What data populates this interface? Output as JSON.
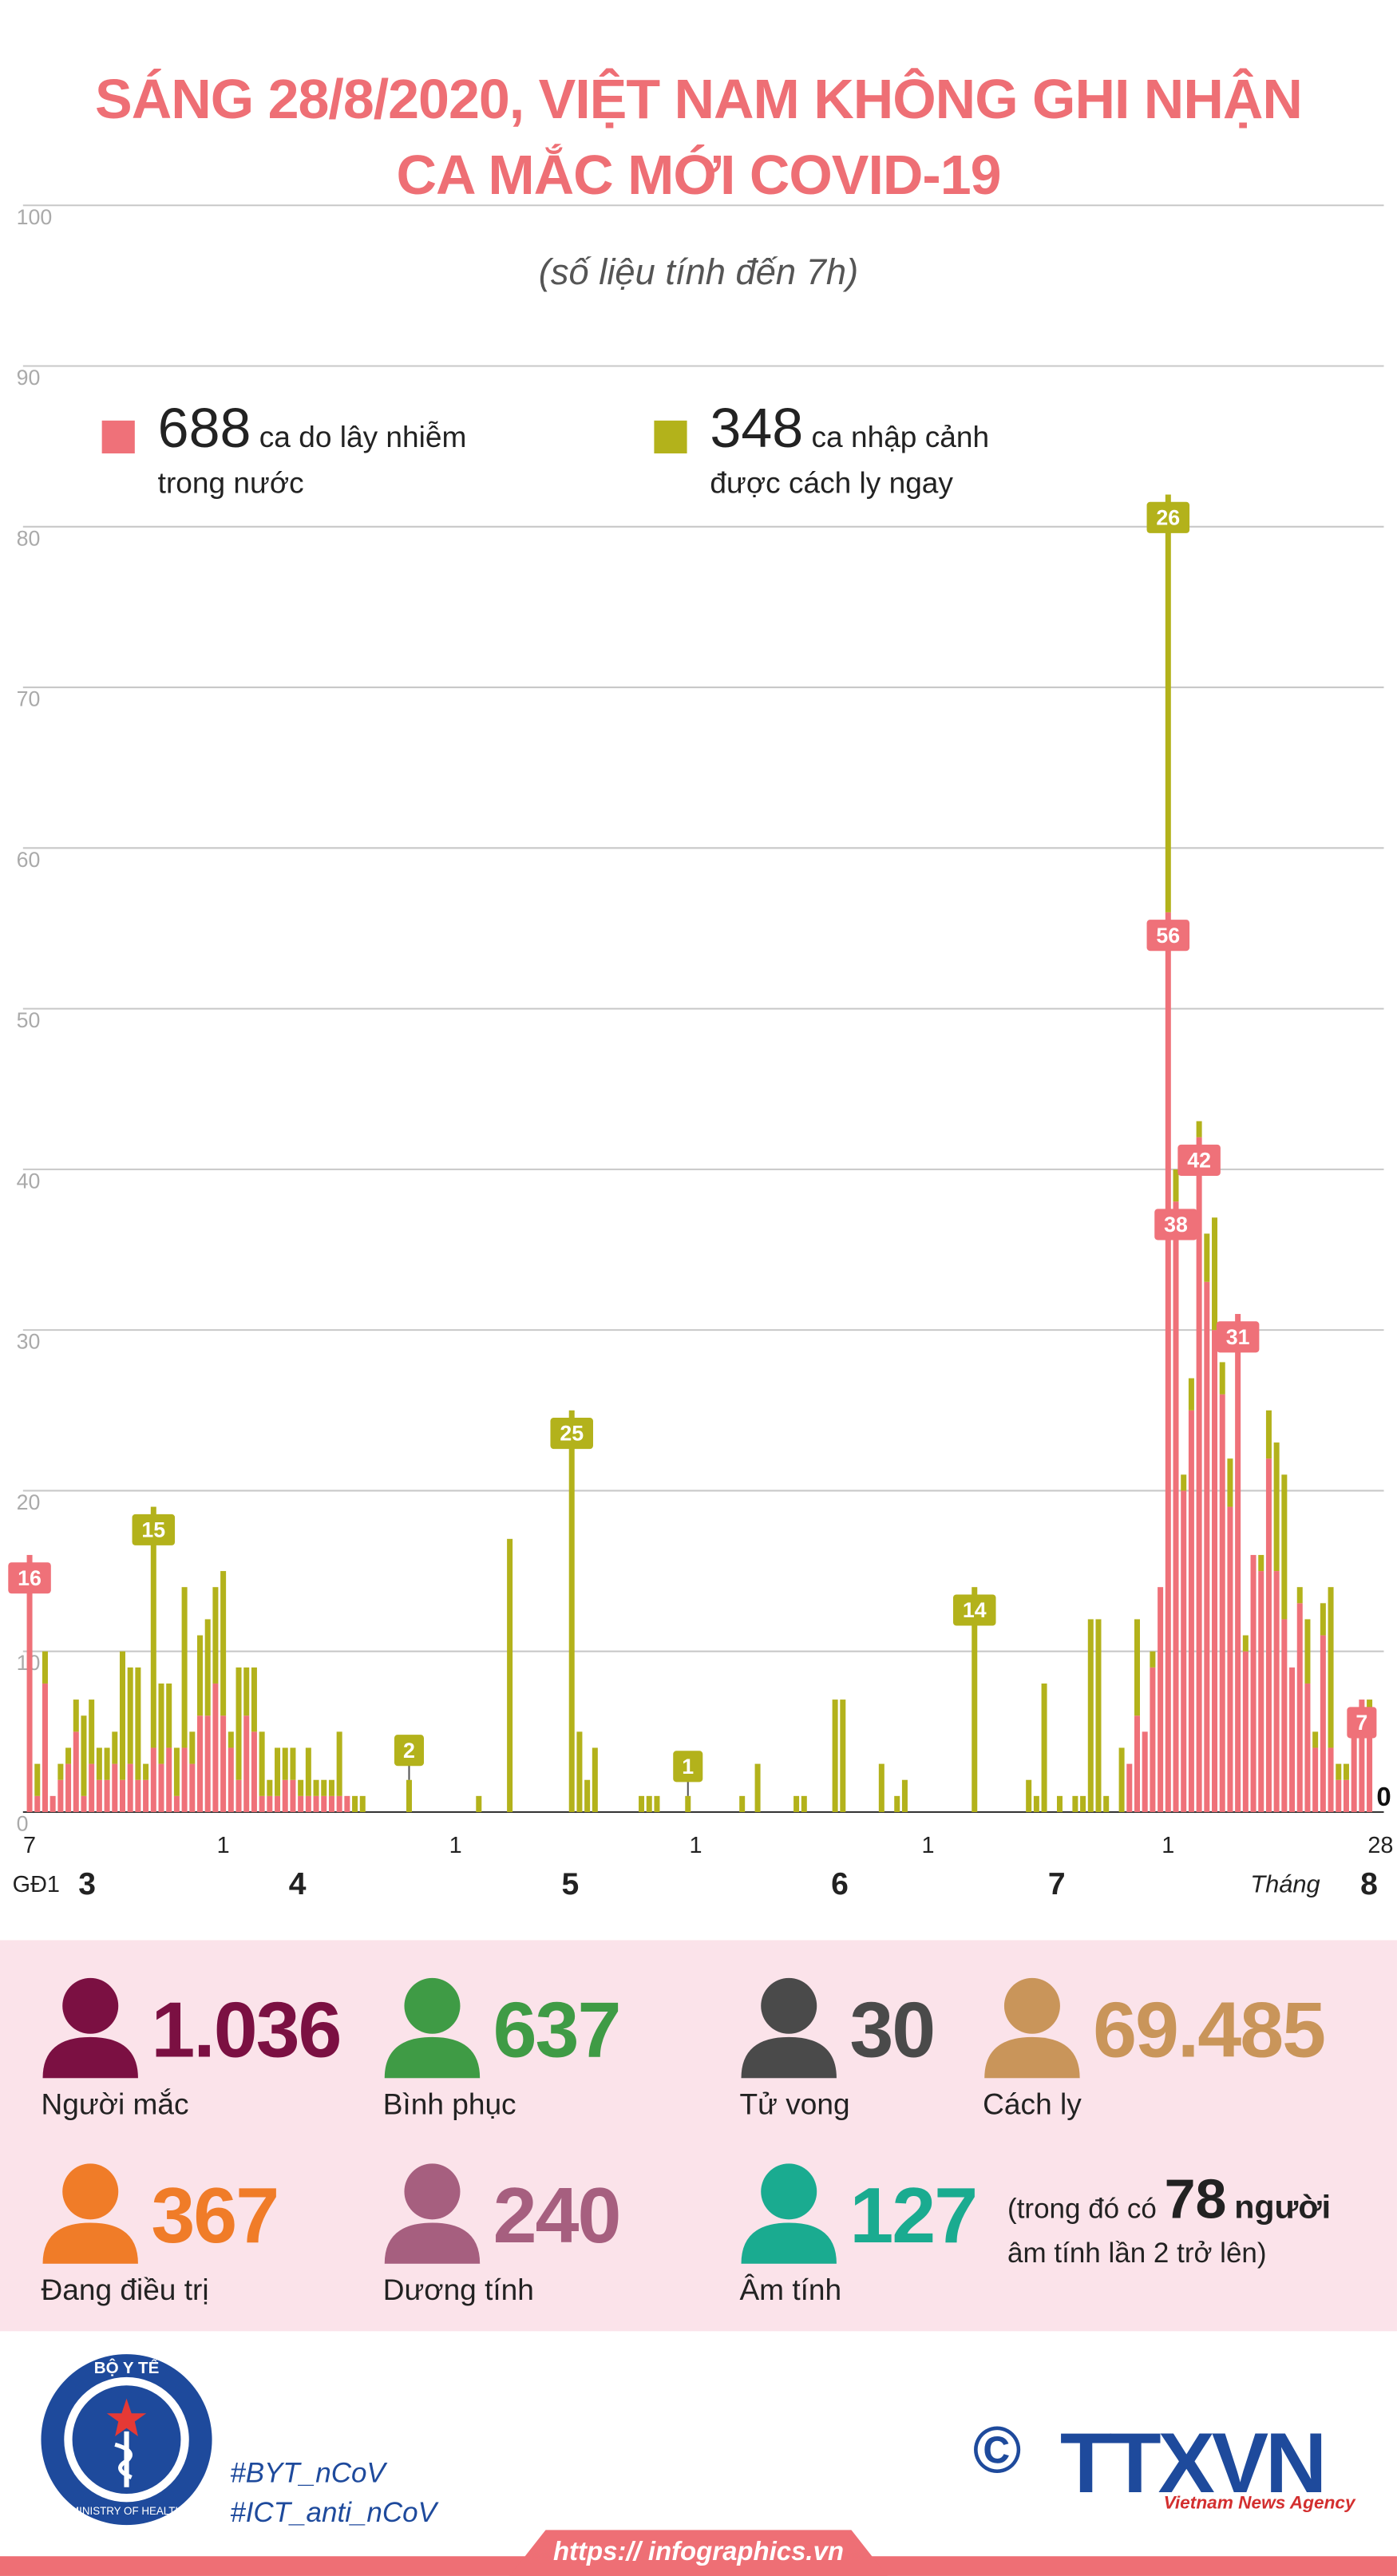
{
  "chart_data": {
    "type": "bar",
    "stacked": true,
    "title": [
      "SÁNG 28/8/2020, VIỆT NAM KHÔNG GHI NHẬN",
      "CA MẮC MỚI COVID-19"
    ],
    "subtitle": "(số liệu tính đến 7h)",
    "ylim": [
      0,
      100
    ],
    "yticks": [
      0,
      10,
      20,
      30,
      40,
      50,
      60,
      70,
      80,
      90,
      100
    ],
    "grid": true,
    "x_groups": [
      "GĐ1",
      "3",
      "4",
      "5",
      "6",
      "7",
      "Tháng",
      "8"
    ],
    "categories": [
      "7",
      null,
      null,
      null,
      null,
      null,
      null,
      null,
      null,
      null,
      null,
      null,
      null,
      null,
      null,
      null,
      null,
      null,
      null,
      null,
      null,
      null,
      null,
      null,
      null,
      "1",
      null,
      null,
      null,
      null,
      null,
      null,
      null,
      null,
      null,
      null,
      null,
      null,
      null,
      null,
      null,
      null,
      null,
      null,
      null,
      null,
      null,
      null,
      null,
      null,
      null,
      null,
      null,
      null,
      null,
      "1",
      null,
      null,
      null,
      null,
      null,
      null,
      null,
      null,
      null,
      null,
      null,
      null,
      null,
      null,
      null,
      null,
      null,
      null,
      null,
      null,
      null,
      null,
      null,
      null,
      null,
      null,
      null,
      null,
      null,
      null,
      "1",
      null,
      null,
      null,
      null,
      null,
      null,
      null,
      null,
      null,
      null,
      null,
      null,
      null,
      null,
      null,
      null,
      null,
      null,
      null,
      null,
      null,
      null,
      null,
      null,
      null,
      null,
      null,
      null,
      null,
      "1",
      null,
      null,
      null,
      null,
      null,
      null,
      null,
      null,
      null,
      null,
      null,
      null,
      null,
      null,
      null,
      null,
      null,
      null,
      null,
      null,
      null,
      null,
      null,
      null,
      null,
      null,
      null,
      null,
      null,
      null,
      "1",
      null,
      null,
      null,
      null,
      null,
      null,
      null,
      null,
      null,
      null,
      null,
      null,
      null,
      null,
      null,
      null,
      null,
      null,
      null,
      null,
      null,
      null,
      null,
      null,
      null,
      null,
      "28"
    ],
    "series": [
      {
        "name": "ca do lây nhiễm trong nước",
        "total": 688,
        "color": "#ef7179",
        "values": [
          16,
          1,
          8,
          1,
          2,
          3,
          5,
          1,
          3,
          2,
          2,
          3,
          2,
          3,
          2,
          2,
          4,
          3,
          4,
          1,
          4,
          3,
          6,
          6,
          8,
          6,
          4,
          2,
          6,
          5,
          1,
          1,
          1,
          2,
          2,
          1,
          1,
          1,
          1,
          1,
          1,
          1,
          0,
          0,
          0,
          0,
          0,
          0,
          0,
          0,
          0,
          0,
          0,
          0,
          0,
          0,
          0,
          0,
          0,
          0,
          0,
          0,
          0,
          0,
          0,
          0,
          0,
          0,
          0,
          0,
          0,
          0,
          0,
          0,
          0,
          0,
          0,
          0,
          0,
          0,
          0,
          0,
          0,
          0,
          0,
          0,
          0,
          0,
          0,
          0,
          0,
          0,
          0,
          0,
          0,
          0,
          0,
          0,
          0,
          0,
          0,
          0,
          0,
          0,
          0,
          0,
          0,
          0,
          0,
          0,
          0,
          0,
          0,
          0,
          0,
          0,
          0,
          0,
          0,
          0,
          0,
          0,
          0,
          0,
          0,
          0,
          0,
          0,
          0,
          0,
          0,
          0,
          0,
          0,
          0,
          0,
          0,
          0,
          0,
          0,
          0,
          0,
          3,
          6,
          5,
          9,
          14,
          56,
          38,
          20,
          25,
          42,
          33,
          30,
          26,
          19,
          31,
          10,
          16,
          15,
          22,
          15,
          12,
          9,
          13,
          8,
          4,
          11,
          4,
          2,
          2,
          6,
          7,
          5,
          0
        ],
        "value_labels": [
          "16",
          null,
          null,
          null,
          null,
          null,
          null,
          null,
          null,
          null,
          null,
          null,
          null,
          null,
          null,
          null,
          null,
          null,
          null,
          null,
          null,
          null,
          null,
          null,
          null,
          null,
          null,
          null,
          null,
          null,
          null,
          null,
          null,
          null,
          null,
          null,
          null,
          null,
          null,
          null,
          null,
          null,
          null,
          null,
          null,
          null,
          null,
          null,
          null,
          null,
          null,
          null,
          null,
          null,
          null,
          null,
          null,
          null,
          null,
          null,
          null,
          null,
          null,
          null,
          null,
          null,
          null,
          null,
          null,
          null,
          null,
          null,
          null,
          null,
          null,
          null,
          null,
          null,
          null,
          null,
          null,
          null,
          null,
          null,
          null,
          null,
          null,
          null,
          null,
          null,
          null,
          null,
          null,
          null,
          null,
          null,
          null,
          null,
          null,
          null,
          null,
          null,
          null,
          null,
          null,
          null,
          null,
          null,
          null,
          null,
          null,
          null,
          null,
          null,
          null,
          null,
          null,
          null,
          null,
          null,
          null,
          null,
          null,
          null,
          null,
          null,
          null,
          null,
          null,
          null,
          null,
          null,
          null,
          null,
          null,
          null,
          null,
          null,
          null,
          null,
          null,
          null,
          null,
          null,
          null,
          null,
          null,
          "56",
          "38",
          null,
          null,
          "42",
          null,
          null,
          null,
          null,
          "31",
          null,
          null,
          null,
          null,
          null,
          null,
          null,
          null,
          null,
          null,
          null,
          null,
          null,
          null,
          null,
          "7",
          null,
          "0"
        ]
      },
      {
        "name": "ca nhập cảnh được cách ly ngay",
        "total": 348,
        "color": "#b3b21b",
        "values": [
          0,
          2,
          2,
          0,
          1,
          1,
          2,
          5,
          4,
          2,
          2,
          2,
          8,
          6,
          7,
          1,
          15,
          5,
          4,
          3,
          10,
          2,
          5,
          6,
          6,
          9,
          1,
          7,
          3,
          4,
          4,
          1,
          3,
          2,
          2,
          1,
          3,
          1,
          1,
          1,
          4,
          0,
          1,
          1,
          0,
          0,
          0,
          0,
          0,
          2,
          0,
          0,
          0,
          0,
          0,
          0,
          0,
          0,
          1,
          0,
          0,
          0,
          17,
          0,
          0,
          0,
          0,
          0,
          0,
          0,
          25,
          5,
          2,
          4,
          0,
          0,
          0,
          0,
          0,
          1,
          1,
          1,
          0,
          0,
          0,
          1,
          0,
          0,
          0,
          0,
          0,
          0,
          1,
          0,
          3,
          0,
          0,
          0,
          0,
          1,
          1,
          0,
          0,
          0,
          7,
          7,
          0,
          0,
          0,
          0,
          3,
          0,
          1,
          2,
          0,
          0,
          0,
          0,
          0,
          0,
          0,
          0,
          14,
          0,
          0,
          0,
          0,
          0,
          0,
          2,
          1,
          8,
          0,
          1,
          0,
          1,
          1,
          12,
          12,
          1,
          0,
          4,
          0,
          6,
          0,
          1,
          0,
          26,
          2,
          1,
          2,
          1,
          3,
          7,
          2,
          3,
          0,
          1,
          0,
          1,
          3,
          8,
          9,
          0,
          1,
          4,
          1,
          2,
          10,
          1,
          1,
          0,
          0,
          2,
          0
        ],
        "value_labels": [
          null,
          null,
          null,
          null,
          null,
          null,
          null,
          null,
          null,
          null,
          null,
          null,
          null,
          null,
          null,
          null,
          "15",
          null,
          null,
          null,
          null,
          null,
          null,
          null,
          null,
          null,
          null,
          null,
          null,
          null,
          null,
          null,
          null,
          null,
          null,
          null,
          null,
          null,
          null,
          null,
          null,
          null,
          null,
          null,
          null,
          null,
          null,
          null,
          null,
          "2",
          null,
          null,
          null,
          null,
          null,
          null,
          null,
          null,
          null,
          null,
          null,
          null,
          null,
          null,
          null,
          null,
          null,
          null,
          null,
          null,
          "25",
          null,
          null,
          null,
          null,
          null,
          null,
          null,
          null,
          null,
          null,
          null,
          null,
          null,
          null,
          "1",
          null,
          null,
          null,
          null,
          null,
          null,
          null,
          null,
          null,
          null,
          null,
          null,
          null,
          null,
          null,
          null,
          null,
          null,
          null,
          null,
          null,
          null,
          null,
          null,
          null,
          null,
          null,
          null,
          null,
          null,
          null,
          null,
          null,
          null,
          null,
          null,
          "14",
          null,
          null,
          null,
          null,
          null,
          null,
          null,
          null,
          null,
          null,
          null,
          null,
          null,
          null,
          null,
          null,
          null,
          null,
          null,
          null,
          null,
          null,
          null,
          null,
          "26",
          null,
          null,
          null,
          null,
          null,
          null,
          null,
          null,
          null,
          null,
          null,
          null,
          null,
          null,
          null,
          null,
          null,
          null,
          null,
          null,
          null,
          null,
          null,
          null,
          null,
          null,
          null
        ]
      }
    ],
    "stats": [
      {
        "value": "1.036",
        "label": "Người mắc",
        "color": "#7b1042"
      },
      {
        "value": "637",
        "label": "Bình phục",
        "color": "#3f9b45"
      },
      {
        "value": "30",
        "label": "Tử vong",
        "color": "#4a4a4a"
      },
      {
        "value": "69.485",
        "label": "Cách ly",
        "color": "#c9955a"
      },
      {
        "value": "367",
        "label": "Đang điều trị",
        "color": "#f07c28"
      },
      {
        "value": "240",
        "label": "Dương tính",
        "color": "#a65f7f"
      },
      {
        "value": "127",
        "label": "Âm tính",
        "color": "#1aab90"
      }
    ],
    "stats_note": {
      "before": "(trong đó có",
      "number": "78",
      "after": "người",
      "line2": "âm tính lần 2 trở lên)"
    },
    "footer": {
      "logo_top": "BỘ Y TẾ",
      "logo_bottom": "MINISTRY OF HEALTH",
      "hashtags": [
        "#BYT_nCoV",
        "#ICT_anti_nCoV"
      ],
      "copyright": "©",
      "agency": "TTXVN",
      "agency_en": "Vietnam News Agency",
      "url": "https:// infographics.vn"
    }
  }
}
